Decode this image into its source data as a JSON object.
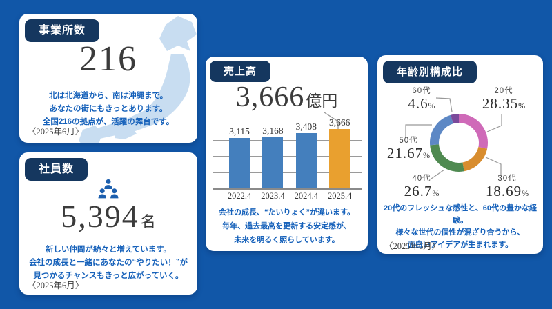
{
  "colors": {
    "background": "#1157a8",
    "badge": "#15375f",
    "card": "#ffffff",
    "body_text_blue": "#1661ba",
    "number_dark": "#3b3b3b",
    "bar_blue": "#447fbd",
    "bar_orange": "#e9a02f",
    "map_light_blue": "#c8ddf1",
    "people_icon_blue": "#1c5fae",
    "leader_gray": "#999999"
  },
  "cards": {
    "offices": {
      "badge": "事業所数",
      "value": "216",
      "lines": [
        "北は北海道から、南は沖縄まで。",
        "あなたの街にもきっとあります。",
        "全国216の拠点が、活躍の舞台です。"
      ],
      "date": "〈2025年6月〉"
    },
    "employees": {
      "badge": "社員数",
      "value": "5,394",
      "unit": "名",
      "lines": [
        "新しい仲間が続々と増えています。",
        "会社の成長と一緒にあなたの“やりたい！”が",
        "見つかるチャンスもきっと広がっていく。"
      ],
      "date": "〈2025年6月〉"
    },
    "sales": {
      "badge": "売上高",
      "value": "3,666",
      "unit": "億円",
      "lines": [
        "会社の成長、“たいりょく”が違います。",
        "毎年、過去最高を更新する安定感が、",
        "未来を明るく照らしています。"
      ]
    },
    "age": {
      "badge": "年齢別構成比",
      "lines": [
        "20代のフレッシュな感性と、60代の豊かな経験。",
        "様々な世代の個性が混ざり合うから、",
        "面白いアイデアが生まれます。"
      ],
      "date": "〈2025年6月〉"
    }
  },
  "chart_data": [
    {
      "type": "bar",
      "title": "売上高",
      "unit": "億円",
      "categories": [
        "2022.4",
        "2023.4",
        "2024.4",
        "2025.4"
      ],
      "values": [
        3115,
        3168,
        3408,
        3666
      ],
      "labels": [
        "3,115",
        "3,168",
        "3,408",
        "3,666"
      ],
      "bar_colors": [
        "#447fbd",
        "#447fbd",
        "#447fbd",
        "#e9a02f"
      ],
      "highlight_value": "3,666",
      "ylim": [
        0,
        3666
      ],
      "gridlines": [
        1000,
        2000,
        3000
      ],
      "legend": "none"
    },
    {
      "type": "pie",
      "donut": true,
      "title": "年齢別構成比",
      "labels": [
        "20代",
        "30代",
        "40代",
        "50代",
        "60代"
      ],
      "values": [
        28.35,
        18.69,
        26.7,
        21.67,
        4.6
      ],
      "display": [
        "28.35",
        "18.69",
        "26.7",
        "21.67",
        "4.6"
      ],
      "colors": [
        "#cf6ab8",
        "#d88d2f",
        "#4f8a51",
        "#5d88c5",
        "#7b4a9b"
      ],
      "unit": "%",
      "start_angle": "top",
      "direction": "clockwise"
    }
  ]
}
